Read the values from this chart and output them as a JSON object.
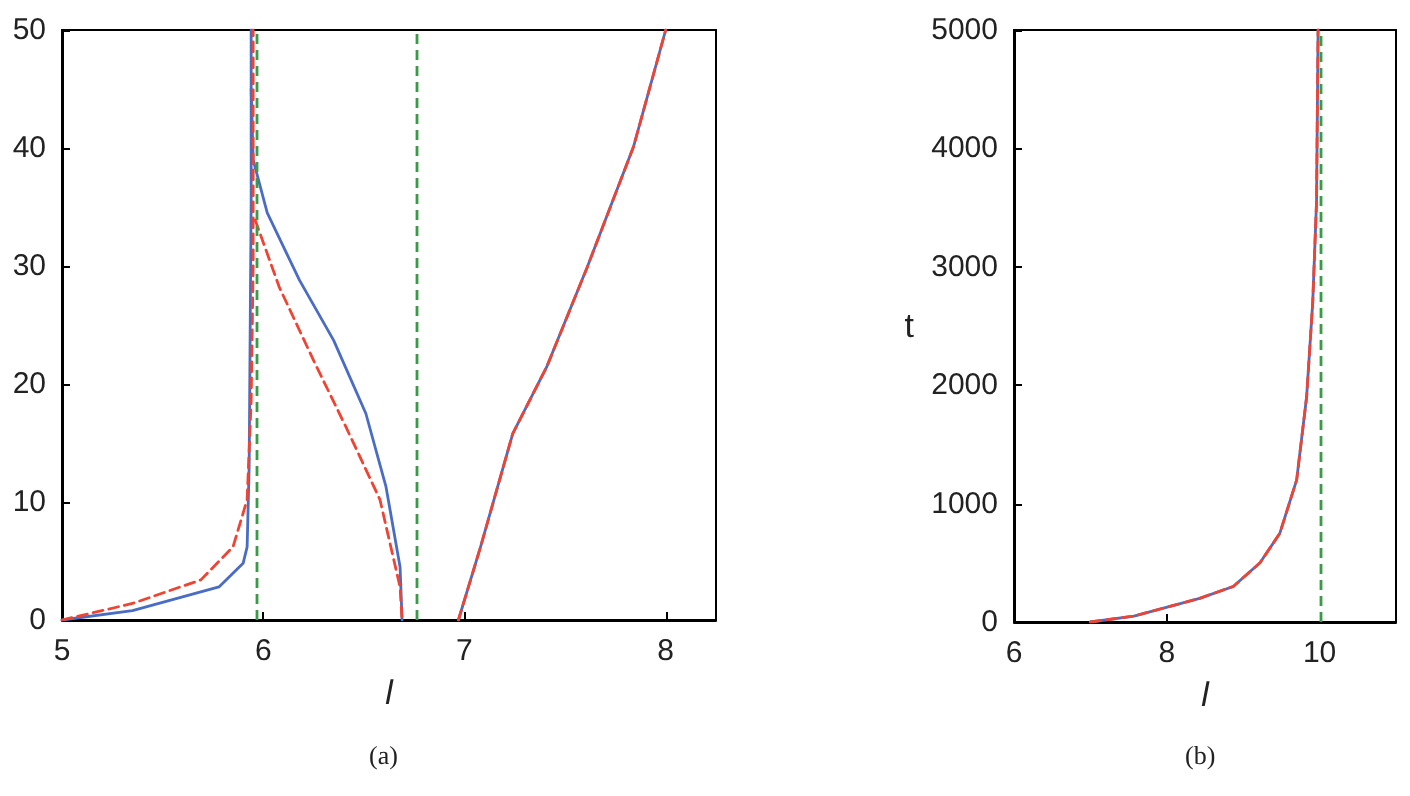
{
  "chart_data": [
    {
      "type": "line",
      "xlabel": "l",
      "xlim": [
        5,
        8.25
      ],
      "xticks": [
        5,
        6,
        7,
        8
      ],
      "ylim": [
        0,
        50
      ],
      "yticks": [
        0,
        10,
        20,
        30,
        40,
        50
      ],
      "grid": false,
      "marker": "none",
      "annotations": [
        "(a)"
      ],
      "ref_lines": [
        {
          "axis": "x",
          "value": 5.97,
          "color": "#3a9a4a",
          "line_style": "dashed"
        },
        {
          "axis": "x",
          "value": 6.76,
          "color": "#3a9a4a",
          "line_style": "dashed"
        }
      ],
      "series": [
        {
          "color": "#4a6cc4",
          "line_style": "solid",
          "x": [
            5,
            5.35,
            5.78,
            5.9,
            5.92,
            5.93,
            5.94,
            5.94
          ],
          "values": [
            0,
            0.8,
            2.8,
            4.8,
            6.2,
            13,
            35.6,
            50
          ]
        },
        {
          "color": "#4a6cc4",
          "line_style": "solid",
          "x": [
            5.94,
            5.95,
            6.02,
            6.18,
            6.35,
            6.51,
            6.61,
            6.68,
            6.69
          ],
          "values": [
            45,
            39,
            34.5,
            28.8,
            23.7,
            17.5,
            11.3,
            4.5,
            0
          ]
        },
        {
          "color": "#4a6cc4",
          "line_style": "solid",
          "x": [
            6.97,
            7.08,
            7.24,
            7.41,
            7.61,
            7.84,
            8.0
          ],
          "values": [
            0,
            6.2,
            15.8,
            21.5,
            29.9,
            40.1,
            50
          ]
        },
        {
          "color": "#ee4433",
          "line_style": "dashed",
          "x": [
            5,
            5.35,
            5.69,
            5.85,
            5.92,
            5.94,
            5.95,
            5.95
          ],
          "values": [
            0,
            1.4,
            3.4,
            6.2,
            10.2,
            18.6,
            30,
            50
          ]
        },
        {
          "color": "#ee4433",
          "line_style": "dashed",
          "x": [
            5.96,
            6.08,
            6.25,
            6.41,
            6.58,
            6.68,
            6.69
          ],
          "values": [
            33.9,
            28.2,
            22,
            16.4,
            10.2,
            2.8,
            0
          ]
        },
        {
          "color": "#ee4433",
          "line_style": "dashed",
          "x": [
            6.97,
            7.08,
            7.24,
            7.41,
            7.61,
            7.84,
            8.0
          ],
          "values": [
            0,
            6.2,
            15.8,
            21.5,
            29.9,
            40.1,
            50
          ]
        }
      ]
    },
    {
      "type": "line",
      "xlabel": "l",
      "ylabel": "t",
      "xlim": [
        6,
        11
      ],
      "xticks": [
        6,
        8,
        10
      ],
      "ylim": [
        0,
        5000
      ],
      "yticks": [
        0,
        1000,
        2000,
        3000,
        4000,
        5000
      ],
      "grid": false,
      "marker": "none",
      "annotations": [
        "(b)"
      ],
      "ref_lines": [
        {
          "axis": "x",
          "value": 10,
          "color": "#3a9a4a",
          "line_style": "dashed"
        }
      ],
      "series": [
        {
          "color": "#4a6cc4",
          "line_style": "solid",
          "x": [
            7.0,
            7.57,
            8.43,
            8.87,
            9.22,
            9.48,
            9.7,
            9.83,
            9.91,
            9.96,
            9.98
          ],
          "values": [
            0,
            50,
            200,
            300,
            500,
            750,
            1200,
            1900,
            2700,
            3550,
            5000
          ]
        },
        {
          "color": "#ee4433",
          "line_style": "dashed",
          "x": [
            7.0,
            7.57,
            8.43,
            8.87,
            9.22,
            9.48,
            9.7,
            9.83,
            9.91,
            9.96,
            9.98
          ],
          "values": [
            0,
            50,
            200,
            300,
            500,
            750,
            1200,
            1900,
            2700,
            3550,
            5000
          ]
        }
      ]
    }
  ]
}
